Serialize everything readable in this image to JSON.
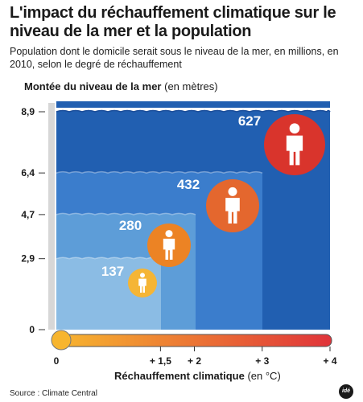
{
  "header": {
    "title": "L'impact du réchauffement climatique sur le niveau de la mer et la population",
    "subtitle": "Population dont le domicile serait sous le niveau de la mer, en millions, en 2010, selon le degré de réchauffement"
  },
  "axes": {
    "y_title": "Montée du niveau de la mer",
    "y_unit": "(en mètres)",
    "x_title": "Réchauffement climatique",
    "x_unit": "(en °C)"
  },
  "footer": {
    "source": "Source : Climate Central",
    "logo": "idé"
  },
  "colors": {
    "level_1": "#8bbce4",
    "level_2": "#5d9dd8",
    "level_3": "#3b7dcc",
    "level_4": "#215fb1",
    "wave": "#1a4d9a",
    "bubble_1": "#f5b535",
    "bubble_2": "#ec8324",
    "bubble_3": "#e4672e",
    "bubble_4": "#d9342c",
    "thermo_start": "#f7b52f",
    "thermo_end": "#e0343a"
  },
  "chart_data": {
    "type": "area",
    "title": "L'impact du réchauffement climatique sur le niveau de la mer et la population",
    "xlabel": "Réchauffement climatique (en °C)",
    "ylabel": "Montée du niveau de la mer (en mètres)",
    "x_ticks": [
      "0",
      "+ 1,5",
      "+ 2",
      "+ 3",
      "+ 4"
    ],
    "y_ticks": [
      "0",
      "2,9",
      "4,7",
      "6,4",
      "8,9"
    ],
    "xlim": [
      0,
      4
    ],
    "ylim": [
      0,
      8.9
    ],
    "series": [
      {
        "warming": 1.5,
        "sea_level_m": 2.9,
        "population_millions": 137,
        "label": "137"
      },
      {
        "warming": 2,
        "sea_level_m": 4.7,
        "population_millions": 280,
        "label": "280"
      },
      {
        "warming": 3,
        "sea_level_m": 6.4,
        "population_millions": 432,
        "label": "432"
      },
      {
        "warming": 4,
        "sea_level_m": 8.9,
        "population_millions": 627,
        "label": "627"
      }
    ]
  }
}
